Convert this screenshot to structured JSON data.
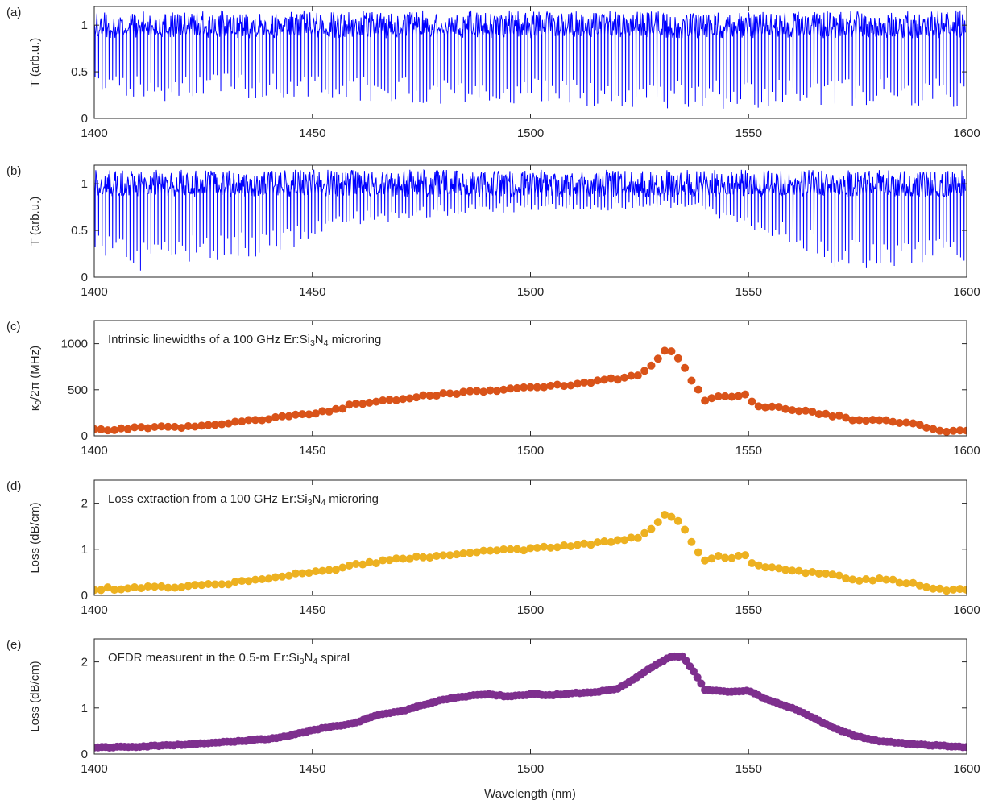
{
  "figure": {
    "xlabel": "Wavelength (nm)"
  },
  "chart_data": [
    {
      "panel_label": "(a)",
      "type": "line",
      "xlim": [
        1400,
        1600
      ],
      "ylim": [
        0,
        1.2
      ],
      "xticks": [
        1400,
        1450,
        1500,
        1550,
        1600
      ],
      "yticks": [
        0,
        0.5,
        1
      ],
      "ylabel": "T (arb.u.)",
      "annotation": "",
      "color": "#0000ff",
      "resonance_spacing_nm": 0.8,
      "baseline_band": [
        0.86,
        1.15
      ],
      "dip_depth_by_wavelength": {
        "x": [
          1400,
          1420,
          1440,
          1460,
          1480,
          1500,
          1520,
          1530,
          1540,
          1560,
          1580,
          1600
        ],
        "min_T": [
          0.15,
          0.18,
          0.22,
          0.17,
          0.15,
          0.12,
          0.1,
          0.08,
          0.1,
          0.12,
          0.14,
          0.12
        ]
      }
    },
    {
      "panel_label": "(b)",
      "type": "line",
      "xlim": [
        1400,
        1600
      ],
      "ylim": [
        0,
        1.2
      ],
      "xticks": [
        1400,
        1450,
        1500,
        1550,
        1600
      ],
      "yticks": [
        0,
        0.5,
        1
      ],
      "ylabel": "T (arb.u.)",
      "annotation": "",
      "color": "#0000ff",
      "resonance_spacing_nm": 0.8,
      "baseline_band": [
        0.86,
        1.15
      ],
      "dip_depth_by_wavelength": {
        "x": [
          1400,
          1410,
          1420,
          1440,
          1460,
          1480,
          1500,
          1520,
          1530,
          1540,
          1550,
          1560,
          1570,
          1580,
          1590,
          1600
        ],
        "min_T": [
          0.25,
          0.05,
          0.15,
          0.22,
          0.55,
          0.65,
          0.7,
          0.7,
          0.75,
          0.68,
          0.5,
          0.35,
          0.1,
          0.05,
          0.08,
          0.12
        ]
      }
    },
    {
      "panel_label": "(c)",
      "type": "scatter",
      "xlim": [
        1400,
        1600
      ],
      "ylim": [
        0,
        1250
      ],
      "xticks": [
        1400,
        1450,
        1500,
        1550,
        1600
      ],
      "yticks": [
        0,
        500,
        1000
      ],
      "ylabel": "κ0/2π (MHz)",
      "annotation": "Intrinsic linewidths of a 100 GHz Er:Si3N4 microring",
      "color": "#d95319",
      "series": [
        {
          "x": [
            1400,
            1410,
            1420,
            1430,
            1435,
            1440,
            1450,
            1455,
            1460,
            1470,
            1480,
            1490,
            1500,
            1505,
            1510,
            1515,
            1520,
            1525,
            1528,
            1531,
            1533,
            1536,
            1540,
            1542,
            1545,
            1550,
            1551,
            1560,
            1570,
            1575,
            1580,
            1590,
            1595,
            1600
          ],
          "y": [
            70,
            80,
            100,
            130,
            160,
            180,
            250,
            280,
            350,
            400,
            450,
            490,
            520,
            540,
            560,
            590,
            620,
            650,
            760,
            930,
            900,
            680,
            380,
            430,
            420,
            450,
            340,
            280,
            220,
            170,
            180,
            110,
            50,
            60
          ]
        }
      ]
    },
    {
      "panel_label": "(d)",
      "type": "scatter",
      "xlim": [
        1400,
        1600
      ],
      "ylim": [
        0,
        2.5
      ],
      "xticks": [
        1400,
        1450,
        1500,
        1550,
        1600
      ],
      "yticks": [
        0,
        1,
        2
      ],
      "ylabel": "Loss (dB/cm)",
      "annotation": "Loss extraction from a 100 GHz Er:Si3N4 microring",
      "color": "#edb120",
      "series": [
        {
          "x": [
            1400,
            1410,
            1420,
            1430,
            1435,
            1440,
            1450,
            1455,
            1460,
            1470,
            1480,
            1490,
            1500,
            1505,
            1510,
            1515,
            1520,
            1525,
            1528,
            1531,
            1533,
            1536,
            1540,
            1542,
            1545,
            1550,
            1551,
            1560,
            1570,
            1575,
            1580,
            1590,
            1595,
            1600
          ],
          "y": [
            0.14,
            0.16,
            0.2,
            0.26,
            0.31,
            0.36,
            0.5,
            0.56,
            0.68,
            0.78,
            0.87,
            0.95,
            1.0,
            1.04,
            1.08,
            1.14,
            1.2,
            1.27,
            1.48,
            1.77,
            1.7,
            1.32,
            0.74,
            0.84,
            0.82,
            0.87,
            0.66,
            0.55,
            0.43,
            0.33,
            0.35,
            0.22,
            0.1,
            0.12
          ]
        }
      ]
    },
    {
      "panel_label": "(e)",
      "type": "scatter",
      "xlim": [
        1400,
        1600
      ],
      "ylim": [
        0,
        2.5
      ],
      "xticks": [
        1400,
        1450,
        1500,
        1550,
        1600
      ],
      "yticks": [
        0,
        1,
        2
      ],
      "ylabel": "Loss (dB/cm)",
      "annotation": "OFDR measurent in the 0.5-m Er:Si3N4 spiral",
      "color": "#7e2f8e",
      "series": [
        {
          "x": [
            1400,
            1410,
            1420,
            1430,
            1440,
            1445,
            1450,
            1455,
            1460,
            1465,
            1470,
            1475,
            1480,
            1485,
            1490,
            1495,
            1500,
            1505,
            1510,
            1515,
            1520,
            1525,
            1528,
            1532,
            1535,
            1538,
            1540,
            1545,
            1550,
            1555,
            1560,
            1565,
            1570,
            1575,
            1580,
            1590,
            1600
          ],
          "y": [
            0.14,
            0.16,
            0.2,
            0.26,
            0.33,
            0.4,
            0.52,
            0.6,
            0.68,
            0.85,
            0.92,
            1.05,
            1.18,
            1.25,
            1.3,
            1.25,
            1.3,
            1.28,
            1.32,
            1.35,
            1.42,
            1.7,
            1.9,
            2.1,
            2.12,
            1.7,
            1.4,
            1.35,
            1.38,
            1.15,
            1.0,
            0.78,
            0.55,
            0.38,
            0.28,
            0.2,
            0.15
          ]
        }
      ]
    }
  ]
}
